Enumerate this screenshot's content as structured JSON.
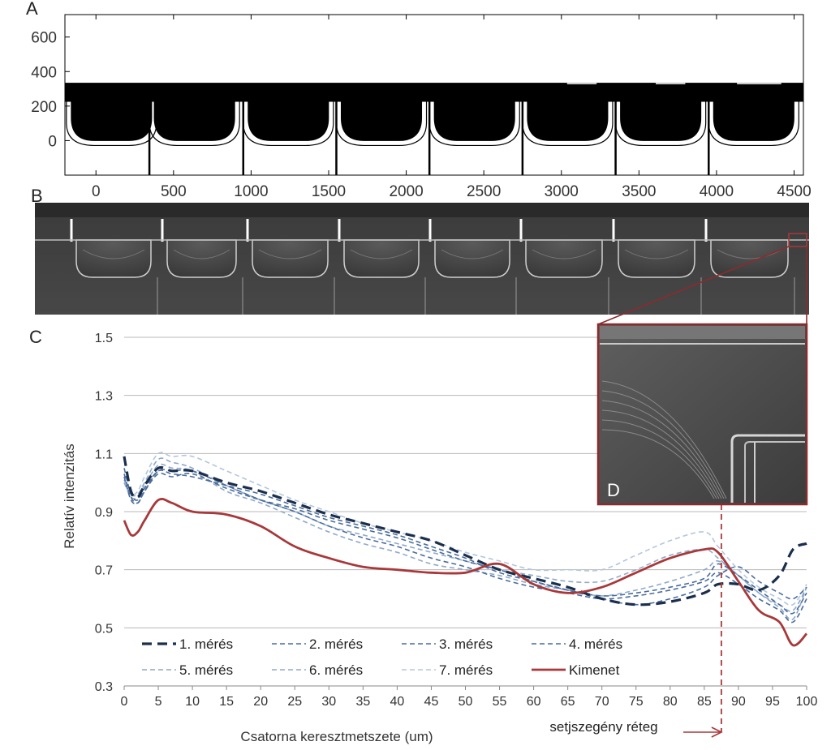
{
  "panels": {
    "a": "A",
    "b": "B",
    "c": "C",
    "d": "D"
  },
  "colors": {
    "dark_navy": "#1b2f4d",
    "mid_blue": "#4a6c9b",
    "light_blue": "#8fa9c8",
    "very_light_blue": "#b3c6dc",
    "kimenet": "#a8383a",
    "inset_border": "#8b2b2d"
  },
  "chart_data": [
    {
      "type": "area",
      "panel": "A",
      "title": "",
      "xlabel": "",
      "ylabel": "",
      "xlim": [
        -200,
        4560
      ],
      "ylim": [
        -200,
        730
      ],
      "x_ticks": [
        0,
        500,
        1000,
        1500,
        2000,
        2500,
        3000,
        3500,
        4000,
        4500
      ],
      "y_ticks": [
        0,
        200,
        400,
        600
      ],
      "channel_starts": [
        -180,
        355,
        960,
        1560,
        2160,
        2760,
        3360,
        3960
      ],
      "channel_width": 560,
      "top_band": [
        225,
        335
      ],
      "bottom_level": 0
    },
    {
      "type": "line",
      "panel": "C",
      "title": "",
      "xlabel": "Csatorna keresztmetszete (um)",
      "ylabel": "Relatív intenzitás",
      "xlim": [
        0,
        100
      ],
      "ylim": [
        0.3,
        1.5
      ],
      "x_ticks": [
        0,
        5,
        10,
        15,
        20,
        25,
        30,
        35,
        40,
        45,
        50,
        55,
        60,
        65,
        70,
        75,
        80,
        85,
        90,
        95,
        100
      ],
      "y_ticks": [
        "0.3",
        "0.5",
        "0.7",
        "0.9",
        "1.1",
        "1.3",
        "1.5"
      ],
      "grid": true,
      "legend": "bottom-left",
      "annotation": {
        "x": 87.5,
        "text": "setjszegény réteg"
      },
      "x": [
        0,
        1,
        2,
        3,
        5,
        7,
        10,
        15,
        20,
        25,
        30,
        35,
        40,
        45,
        50,
        55,
        60,
        65,
        70,
        75,
        80,
        85,
        87,
        90,
        93,
        96,
        98,
        100
      ],
      "series": [
        {
          "name": "1. mérés",
          "style": "dark-dash",
          "values": [
            1.09,
            0.97,
            0.95,
            0.99,
            1.05,
            1.04,
            1.04,
            1.0,
            0.97,
            0.93,
            0.89,
            0.86,
            0.83,
            0.8,
            0.75,
            0.7,
            0.67,
            0.64,
            0.6,
            0.58,
            0.59,
            0.62,
            0.65,
            0.65,
            0.63,
            0.68,
            0.77,
            0.79
          ]
        },
        {
          "name": "2. mérés",
          "style": "blue-dash",
          "values": [
            1.05,
            0.96,
            0.94,
            0.98,
            1.04,
            1.03,
            1.02,
            0.99,
            0.96,
            0.92,
            0.88,
            0.85,
            0.82,
            0.78,
            0.74,
            0.69,
            0.66,
            0.63,
            0.6,
            0.58,
            0.6,
            0.64,
            0.68,
            0.71,
            0.66,
            0.62,
            0.6,
            0.64
          ]
        },
        {
          "name": "3. mérés",
          "style": "blue-dash",
          "values": [
            1.03,
            0.95,
            0.93,
            0.97,
            1.03,
            1.02,
            1.03,
            0.98,
            0.94,
            0.91,
            0.87,
            0.84,
            0.81,
            0.77,
            0.73,
            0.7,
            0.66,
            0.63,
            0.61,
            0.62,
            0.64,
            0.67,
            0.72,
            0.68,
            0.63,
            0.58,
            0.55,
            0.62
          ]
        },
        {
          "name": "4. mérés",
          "style": "blue-dash",
          "values": [
            1.02,
            0.94,
            0.93,
            0.97,
            1.04,
            1.04,
            1.04,
            0.99,
            0.94,
            0.9,
            0.85,
            0.81,
            0.78,
            0.74,
            0.71,
            0.67,
            0.64,
            0.62,
            0.6,
            0.61,
            0.63,
            0.66,
            0.69,
            0.65,
            0.6,
            0.56,
            0.52,
            0.6
          ]
        },
        {
          "name": "5. mérés",
          "style": "light-dash",
          "values": [
            1.0,
            0.95,
            0.95,
            0.99,
            1.06,
            1.05,
            1.04,
            0.97,
            0.93,
            0.88,
            0.83,
            0.79,
            0.76,
            0.72,
            0.7,
            0.68,
            0.65,
            0.63,
            0.61,
            0.63,
            0.66,
            0.7,
            0.73,
            0.68,
            0.62,
            0.57,
            0.53,
            0.64
          ]
        },
        {
          "name": "6. mérés",
          "style": "light-dash",
          "values": [
            1.01,
            0.96,
            0.96,
            1.0,
            1.08,
            1.07,
            1.05,
            0.99,
            0.94,
            0.9,
            0.85,
            0.82,
            0.79,
            0.76,
            0.73,
            0.7,
            0.68,
            0.66,
            0.66,
            0.7,
            0.75,
            0.77,
            0.74,
            0.68,
            0.62,
            0.58,
            0.56,
            0.64
          ]
        },
        {
          "name": "7. mérés",
          "style": "very-light-dash",
          "values": [
            1.0,
            0.96,
            0.97,
            1.02,
            1.1,
            1.09,
            1.09,
            1.04,
            0.99,
            0.94,
            0.9,
            0.86,
            0.83,
            0.8,
            0.76,
            0.73,
            0.7,
            0.7,
            0.7,
            0.75,
            0.8,
            0.83,
            0.78,
            0.7,
            0.64,
            0.6,
            0.58,
            0.65
          ]
        },
        {
          "name": "Kimenet",
          "style": "red-solid",
          "values": [
            0.87,
            0.82,
            0.83,
            0.87,
            0.94,
            0.93,
            0.9,
            0.89,
            0.85,
            0.78,
            0.74,
            0.71,
            0.7,
            0.69,
            0.69,
            0.72,
            0.65,
            0.62,
            0.64,
            0.69,
            0.74,
            0.77,
            0.76,
            0.66,
            0.56,
            0.52,
            0.44,
            0.48
          ]
        }
      ]
    }
  ]
}
